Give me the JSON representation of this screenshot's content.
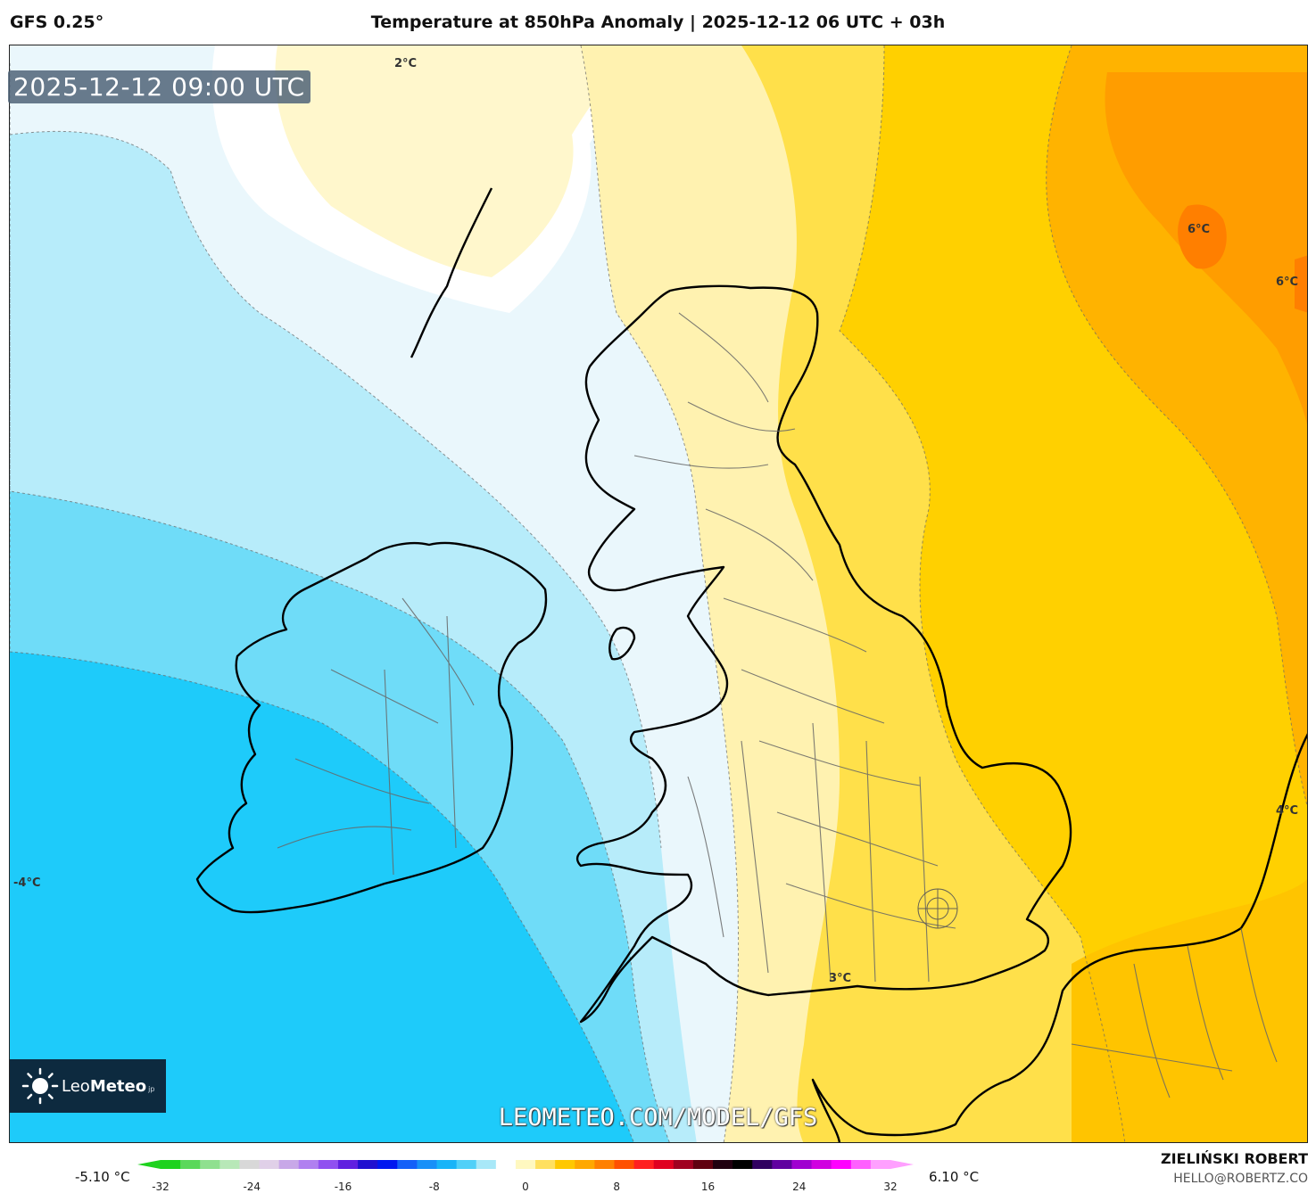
{
  "header": {
    "model": "GFS 0.25°",
    "title": "Temperature at 850hPa Anomaly | 2025-12-12 06 UTC + 03h"
  },
  "map": {
    "valid_time": "2025-12-12 09:00 UTC",
    "watermark": "LEOMETEO.COM/MODEL/GFS",
    "contour_labels": [
      "2°C",
      "6°C",
      "6°C",
      "4°C",
      "-4°C",
      "3°C"
    ]
  },
  "logo": {
    "brand_light": "Leo",
    "brand_bold": "Meteo",
    "suffix": "jp"
  },
  "legend": {
    "min_label": "-5.10 °C",
    "max_label": "6.10 °C",
    "ticks": [
      "-32",
      "-24",
      "-16",
      "-8",
      "0",
      "8",
      "16",
      "24",
      "32"
    ],
    "colors": [
      "#1ed21e",
      "#5ad85a",
      "#8fe08f",
      "#b8e8b8",
      "#d8d8d8",
      "#e0d0e8",
      "#c8a8e8",
      "#b080f0",
      "#9050f0",
      "#6020e0",
      "#2010d0",
      "#0018f0",
      "#1460f8",
      "#1890f8",
      "#18b4f8",
      "#50d0f8",
      "#a8e8f8",
      "#ffffff",
      "#fff8c0",
      "#ffe060",
      "#ffc800",
      "#ffa800",
      "#ff8000",
      "#ff5000",
      "#ff2020",
      "#e00020",
      "#a00020",
      "#600010",
      "#200010",
      "#000000",
      "#300060",
      "#6000a0",
      "#a000d0",
      "#d000e0",
      "#ff00ff",
      "#ff60ff",
      "#ffa0ff"
    ]
  },
  "footer": {
    "author": "ZIELIŃSKI ROBERT",
    "email": "HELLO@ROBERTZ.CO"
  }
}
